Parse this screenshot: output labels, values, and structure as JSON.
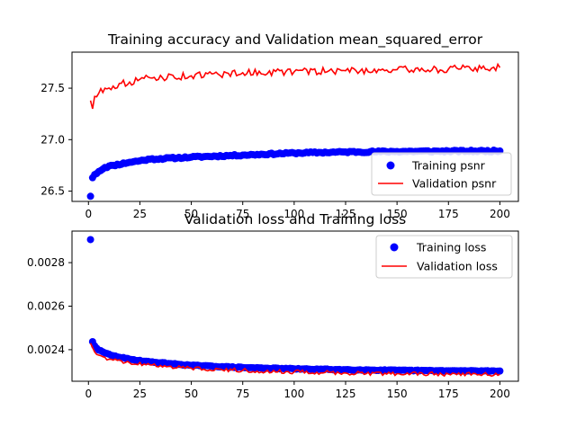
{
  "colors": {
    "training": "#0000ff",
    "validation": "#ff0000",
    "frame": "#000000",
    "legend_border": "#cccccc"
  },
  "chart_data": [
    {
      "type": "line",
      "title": "Training accuracy and Validation mean_squared_error",
      "xlabel": "",
      "ylabel": "",
      "xlim": [
        -8,
        209
      ],
      "ylim": [
        26.4,
        27.85
      ],
      "xticks": [
        0,
        25,
        50,
        75,
        100,
        125,
        150,
        175,
        200
      ],
      "yticks": [
        26.5,
        27.0,
        27.5
      ],
      "ytick_labels": [
        "26.5",
        "27.0",
        "27.5"
      ],
      "legend": "lower-right",
      "grid": false,
      "series": [
        {
          "name": "Training psnr",
          "style": "markers",
          "color": "#0000ff",
          "anchors": [
            [
              1,
              26.45
            ],
            [
              2,
              26.63
            ],
            [
              3,
              26.66
            ],
            [
              5,
              26.69
            ],
            [
              8,
              26.73
            ],
            [
              12,
              26.75
            ],
            [
              20,
              26.78
            ],
            [
              30,
              26.81
            ],
            [
              50,
              26.83
            ],
            [
              75,
              26.85
            ],
            [
              100,
              26.87
            ],
            [
              125,
              26.88
            ],
            [
              150,
              26.885
            ],
            [
              175,
              26.888
            ],
            [
              200,
              26.89
            ]
          ],
          "noise": 0.008
        },
        {
          "name": "Validation psnr",
          "style": "line",
          "color": "#ff0000",
          "anchors": [
            [
              1,
              27.38
            ],
            [
              2,
              27.3
            ],
            [
              3,
              27.42
            ],
            [
              5,
              27.45
            ],
            [
              8,
              27.5
            ],
            [
              12,
              27.52
            ],
            [
              20,
              27.56
            ],
            [
              30,
              27.6
            ],
            [
              50,
              27.62
            ],
            [
              75,
              27.65
            ],
            [
              100,
              27.66
            ],
            [
              125,
              27.67
            ],
            [
              150,
              27.68
            ],
            [
              175,
              27.685
            ],
            [
              200,
              27.7
            ]
          ],
          "noise": 0.035
        }
      ]
    },
    {
      "type": "line",
      "title": "Validation loss and Training loss",
      "xlabel": "",
      "ylabel": "",
      "xlim": [
        -8,
        209
      ],
      "ylim": [
        0.002255,
        0.002945
      ],
      "xticks": [
        0,
        25,
        50,
        75,
        100,
        125,
        150,
        175,
        200
      ],
      "yticks": [
        0.0024,
        0.0026,
        0.0028
      ],
      "ytick_labels": [
        "0.0024",
        "0.0026",
        "0.0028"
      ],
      "legend": "upper-right",
      "grid": false,
      "series": [
        {
          "name": "Training loss",
          "style": "markers",
          "color": "#0000ff",
          "anchors": [
            [
              1,
              0.002906
            ],
            [
              2,
              0.002437
            ],
            [
              3,
              0.002418
            ],
            [
              5,
              0.002398
            ],
            [
              8,
              0.002385
            ],
            [
              12,
              0.002372
            ],
            [
              20,
              0.002356
            ],
            [
              30,
              0.002344
            ],
            [
              50,
              0.002328
            ],
            [
              75,
              0.002318
            ],
            [
              100,
              0.002312
            ],
            [
              125,
              0.002308
            ],
            [
              150,
              0.002305
            ],
            [
              175,
              0.002303
            ],
            [
              200,
              0.002302
            ]
          ],
          "noise": 2e-06
        },
        {
          "name": "Validation loss",
          "style": "line",
          "color": "#ff0000",
          "anchors": [
            [
              1,
              0.00243
            ],
            [
              2,
              0.00241
            ],
            [
              3,
              0.00239
            ],
            [
              5,
              0.002375
            ],
            [
              8,
              0.002365
            ],
            [
              12,
              0.002352
            ],
            [
              20,
              0.00234
            ],
            [
              30,
              0.00233
            ],
            [
              50,
              0.002315
            ],
            [
              75,
              0.002305
            ],
            [
              100,
              0.002298
            ],
            [
              125,
              0.002293
            ],
            [
              150,
              0.00229
            ],
            [
              175,
              0.002288
            ],
            [
              200,
              0.002287
            ]
          ],
          "noise": 9e-06
        }
      ]
    }
  ]
}
